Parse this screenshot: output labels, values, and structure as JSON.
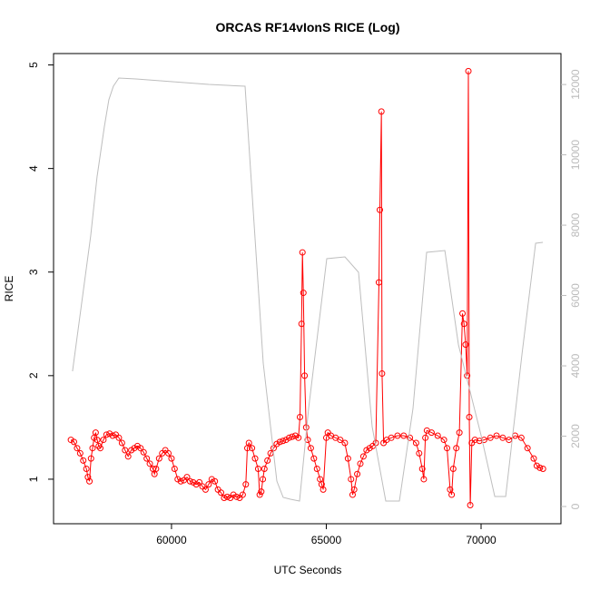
{
  "chart_data": {
    "type": "line",
    "title": "ORCAS RF14vIonS RICE (Log)",
    "x_label": "UTC Seconds",
    "y_label": "RICE",
    "xlim": [
      56190,
      72580
    ],
    "xticks": [
      60000,
      65000,
      70000
    ],
    "ylim": [
      0.57,
      5.11
    ],
    "yticks": [
      1,
      2,
      3,
      4,
      5
    ],
    "y2lim": [
      -490,
      12880
    ],
    "y2ticks": [
      0,
      2000,
      4000,
      6000,
      8000,
      10000,
      12000
    ],
    "series": [
      {
        "color": "#ff0000",
        "markers": true,
        "x": [
          56750,
          56850,
          56950,
          57050,
          57150,
          57250,
          57300,
          57350,
          57400,
          57450,
          57500,
          57550,
          57600,
          57650,
          57700,
          57800,
          57900,
          58000,
          58100,
          58200,
          58300,
          58400,
          58500,
          58600,
          58700,
          58800,
          58900,
          59000,
          59100,
          59200,
          59300,
          59400,
          59450,
          59500,
          59600,
          59700,
          59800,
          59900,
          60000,
          60100,
          60200,
          60300,
          60400,
          60500,
          60600,
          60700,
          60800,
          60900,
          61000,
          61100,
          61200,
          61300,
          61400,
          61500,
          61600,
          61700,
          61800,
          61900,
          62000,
          62100,
          62200,
          62300,
          62400,
          62450,
          62500,
          62600,
          62700,
          62800,
          62850,
          62900,
          62950,
          63000,
          63100,
          63200,
          63300,
          63400,
          63500,
          63600,
          63700,
          63800,
          63900,
          64000,
          64100,
          64150,
          64200,
          64230,
          64260,
          64300,
          64350,
          64400,
          64500,
          64600,
          64700,
          64800,
          64850,
          64900,
          65000,
          65050,
          65150,
          65300,
          65450,
          65600,
          65700,
          65800,
          65850,
          65900,
          66000,
          66100,
          66200,
          66300,
          66400,
          66500,
          66600,
          66700,
          66730,
          66780,
          66800,
          66850,
          66950,
          67100,
          67300,
          67500,
          67700,
          67900,
          68000,
          68100,
          68150,
          68200,
          68250,
          68400,
          68600,
          68800,
          68900,
          69000,
          69050,
          69100,
          69200,
          69300,
          69400,
          69450,
          69500,
          69550,
          69590,
          69620,
          69650,
          69700,
          69800,
          69950,
          70100,
          70300,
          70500,
          70700,
          70900,
          71100,
          71300,
          71500,
          71700,
          71800,
          71900,
          72000
        ],
        "values": [
          1.38,
          1.36,
          1.3,
          1.25,
          1.18,
          1.1,
          1.02,
          0.98,
          1.2,
          1.3,
          1.4,
          1.45,
          1.38,
          1.32,
          1.3,
          1.38,
          1.43,
          1.44,
          1.42,
          1.43,
          1.4,
          1.35,
          1.28,
          1.22,
          1.28,
          1.3,
          1.32,
          1.3,
          1.26,
          1.2,
          1.15,
          1.1,
          1.05,
          1.1,
          1.2,
          1.25,
          1.28,
          1.25,
          1.2,
          1.1,
          1.0,
          0.98,
          0.99,
          1.02,
          0.98,
          0.97,
          0.95,
          0.97,
          0.93,
          0.9,
          0.95,
          1.0,
          0.98,
          0.9,
          0.87,
          0.82,
          0.83,
          0.82,
          0.85,
          0.83,
          0.82,
          0.85,
          0.95,
          1.3,
          1.35,
          1.3,
          1.2,
          1.1,
          0.85,
          0.88,
          1.0,
          1.1,
          1.18,
          1.25,
          1.3,
          1.34,
          1.36,
          1.37,
          1.38,
          1.4,
          1.41,
          1.42,
          1.4,
          1.6,
          2.5,
          3.19,
          2.8,
          2.0,
          1.5,
          1.38,
          1.3,
          1.2,
          1.1,
          1.0,
          0.95,
          0.9,
          1.4,
          1.45,
          1.42,
          1.4,
          1.38,
          1.35,
          1.2,
          1.0,
          0.85,
          0.9,
          1.05,
          1.15,
          1.22,
          1.28,
          1.3,
          1.32,
          1.35,
          2.9,
          3.6,
          4.55,
          2.02,
          1.35,
          1.38,
          1.4,
          1.42,
          1.42,
          1.4,
          1.35,
          1.25,
          1.1,
          1.0,
          1.4,
          1.47,
          1.45,
          1.42,
          1.38,
          1.3,
          0.9,
          0.85,
          1.1,
          1.3,
          1.45,
          2.6,
          2.5,
          2.3,
          2.0,
          4.94,
          1.6,
          0.75,
          1.35,
          1.38,
          1.37,
          1.38,
          1.4,
          1.42,
          1.4,
          1.38,
          1.42,
          1.4,
          1.3,
          1.2,
          1.13,
          1.11,
          1.1
        ]
      },
      {
        "color": "#bebebe",
        "axis": "y2",
        "markers": false,
        "x": [
          56803,
          57390,
          57595,
          57830,
          57976,
          58123,
          58299,
          58856,
          61203,
          62376,
          62962,
          63402,
          63608,
          63842,
          64136,
          64429,
          65016,
          65602,
          66042,
          66482,
          66922,
          67362,
          67802,
          68242,
          68829,
          69269,
          70002,
          70442,
          70794,
          71322,
          71762,
          71997
        ],
        "values": [
          3846,
          7691,
          9369,
          10789,
          11563,
          11950,
          12182,
          12157,
          12002,
          11950,
          4078,
          723,
          258,
          206,
          155,
          2787,
          7046,
          7098,
          6659,
          2271,
          155,
          155,
          2787,
          7227,
          7278,
          4594,
          2013,
          284,
          284,
          4336,
          7485,
          7511
        ]
      }
    ]
  }
}
